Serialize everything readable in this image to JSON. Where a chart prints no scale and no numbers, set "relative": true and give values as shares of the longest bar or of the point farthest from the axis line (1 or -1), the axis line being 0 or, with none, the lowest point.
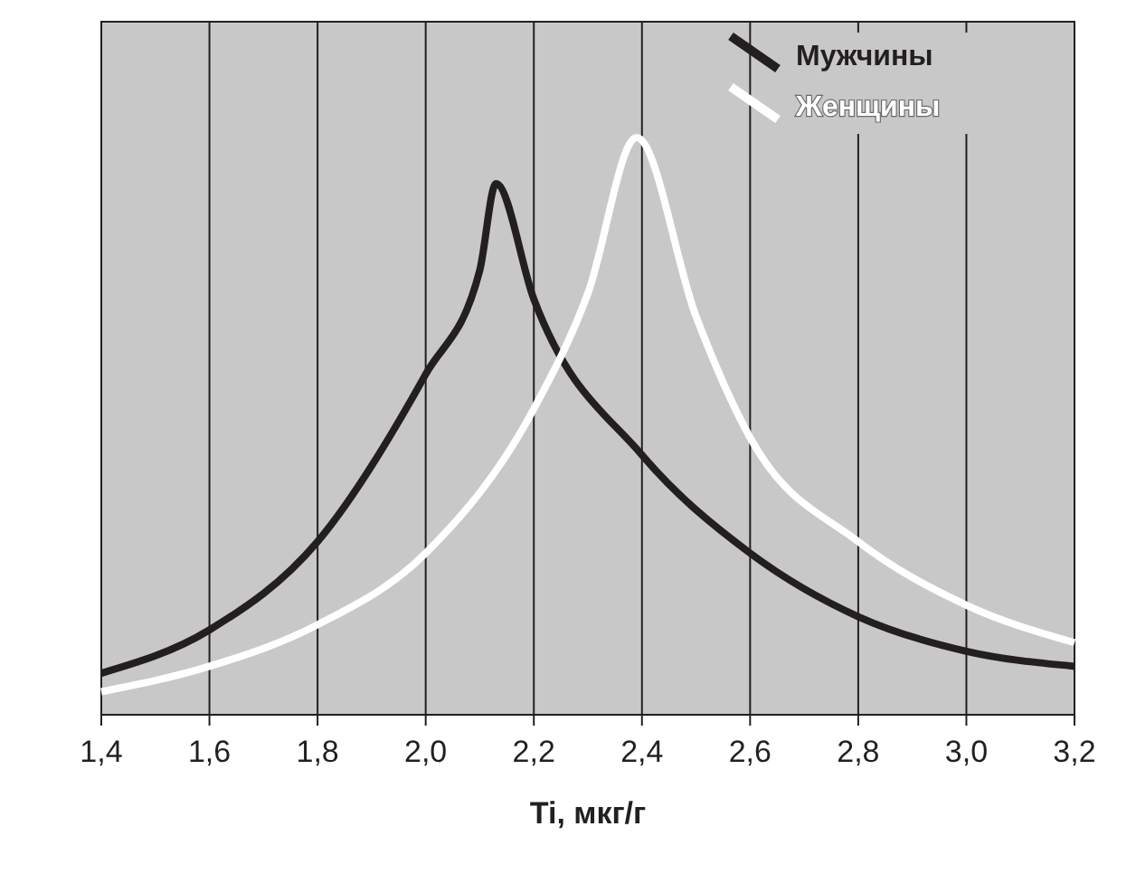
{
  "chart_data": {
    "type": "line",
    "relative": true,
    "xlabel": "Ti, мкг/г",
    "x": [
      1.4,
      1.6,
      1.8,
      2.0,
      2.1,
      2.13,
      2.2,
      2.4,
      2.6,
      2.8,
      3.0,
      3.2
    ],
    "series": [
      {
        "name": "Мужчины",
        "color": "#231f20",
        "values": [
          0.072,
          0.147,
          0.3,
          0.59,
          0.77,
          0.92,
          0.72,
          0.45,
          0.28,
          0.17,
          0.11,
          0.084
        ]
      },
      {
        "name": "Женщины",
        "color": "#ffffff",
        "x": [
          1.4,
          1.6,
          1.8,
          2.0,
          2.2,
          2.3,
          2.39,
          2.5,
          2.6,
          2.8,
          3.0,
          3.2
        ],
        "values": [
          0.04,
          0.084,
          0.156,
          0.28,
          0.53,
          0.73,
          1.0,
          0.69,
          0.48,
          0.3,
          0.19,
          0.125
        ]
      }
    ],
    "xlim": [
      1.4,
      3.2
    ],
    "xticks": [
      {
        "value": 1.4,
        "label": "1,4"
      },
      {
        "value": 1.6,
        "label": "1,6"
      },
      {
        "value": 1.8,
        "label": "1,8"
      },
      {
        "value": 2.0,
        "label": "2,0"
      },
      {
        "value": 2.2,
        "label": "2,2"
      },
      {
        "value": 2.4,
        "label": "2,4"
      },
      {
        "value": 2.6,
        "label": "2,6"
      },
      {
        "value": 2.8,
        "label": "2,8"
      },
      {
        "value": 3.0,
        "label": "3,0"
      },
      {
        "value": 3.2,
        "label": "3,2"
      }
    ],
    "grid": "x",
    "legend": "top right",
    "marker": "none",
    "line_style": "solid"
  }
}
